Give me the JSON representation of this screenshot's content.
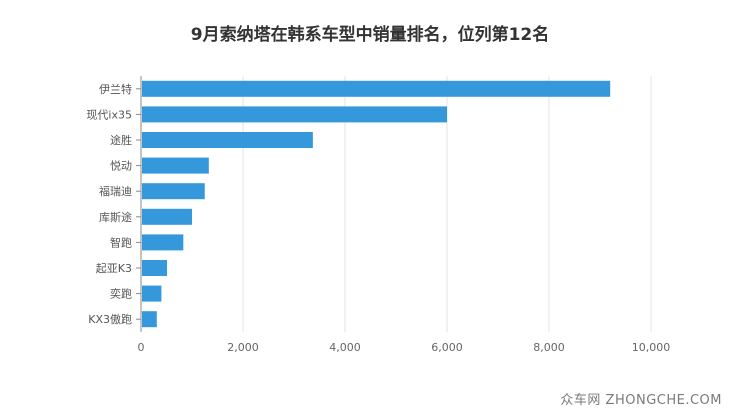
{
  "chart_data": {
    "type": "bar",
    "orientation": "horizontal",
    "title": "9月索纳塔在韩系车型中销量排名，位列第12名",
    "categories": [
      "伊兰特",
      "现代ix35",
      "途胜",
      "悦动",
      "福瑞迪",
      "库斯途",
      "智跑",
      "起亚K3",
      "奕跑",
      "KX3傲跑"
    ],
    "values": [
      9200,
      6000,
      3370,
      1330,
      1250,
      1000,
      830,
      510,
      400,
      310
    ],
    "xlim": [
      0,
      10000
    ],
    "xticks": [
      0,
      2000,
      4000,
      6000,
      8000,
      10000
    ],
    "xtick_labels": [
      "0",
      "2,000",
      "4,000",
      "6,000",
      "8,000",
      "10,000"
    ],
    "xlabel": "",
    "ylabel": "",
    "grid": "vertical",
    "bar_color": "#3498db"
  },
  "watermark": "众车网 ZHONGCHE.COM"
}
